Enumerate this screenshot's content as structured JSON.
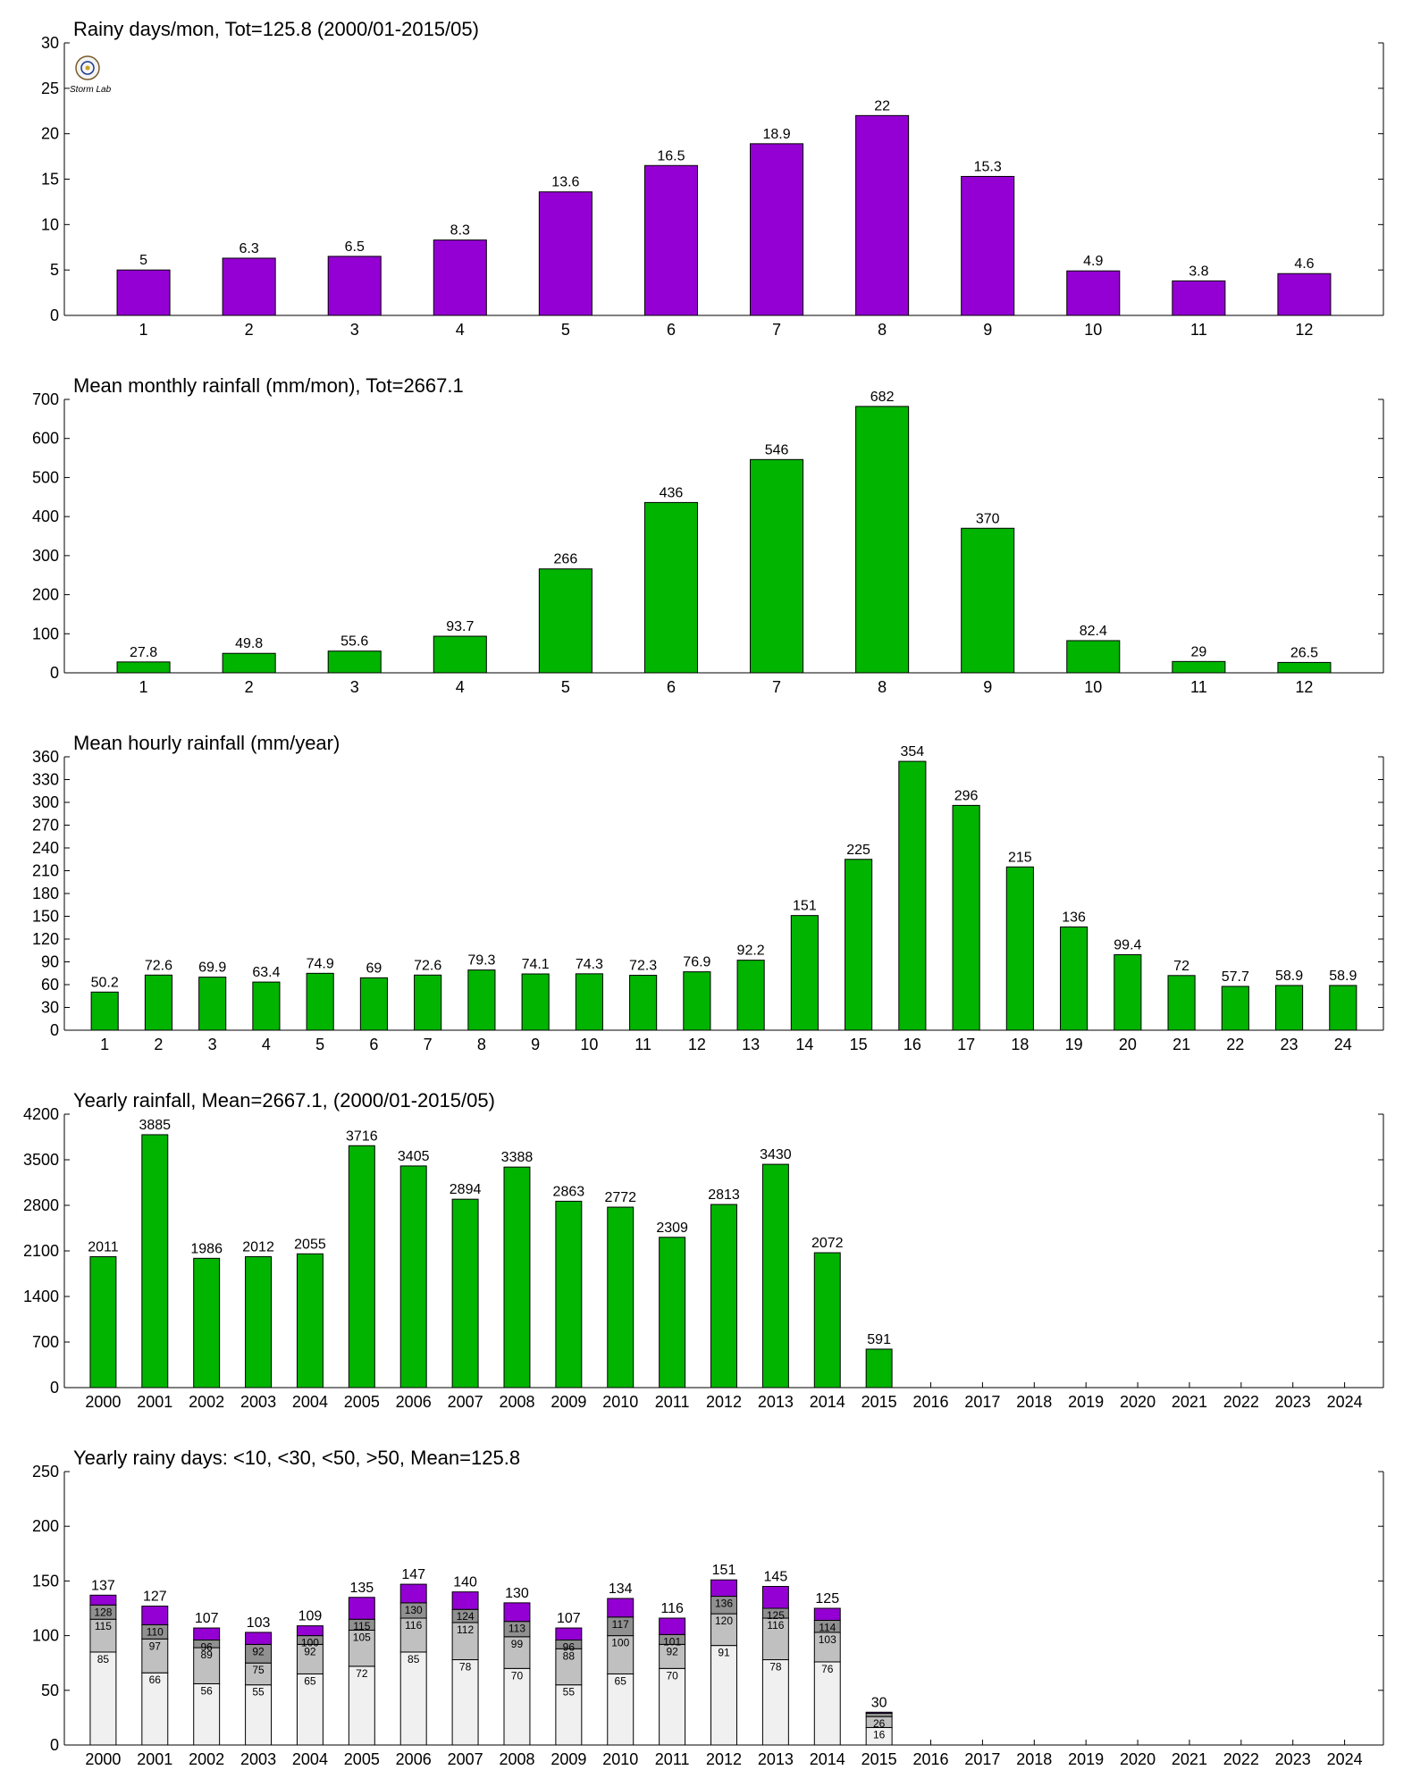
{
  "colors": {
    "purple": "#9400d3",
    "green": "#00b400",
    "seg_lt10": "#f0f0f0",
    "seg_10_30": "#c0c0c0",
    "seg_30_50": "#909090",
    "seg_gt50": "#9400d3"
  },
  "logo": {
    "text": "Storm Lab",
    "icon": "lab-seal-logo"
  },
  "chart_data": [
    {
      "type": "bar",
      "title": "Rainy days/mon, Tot=125.8 (2000/01-2015/05)",
      "categories": [
        "1",
        "2",
        "3",
        "4",
        "5",
        "6",
        "7",
        "8",
        "9",
        "10",
        "11",
        "12"
      ],
      "values": [
        5,
        6.3,
        6.5,
        8.3,
        13.6,
        16.5,
        18.9,
        22,
        15.3,
        4.9,
        3.8,
        4.6
      ],
      "labels": [
        "5",
        "6.3",
        "6.5",
        "8.3",
        "13.6",
        "16.5",
        "18.9",
        "22",
        "15.3",
        "4.9",
        "3.8",
        "4.6"
      ],
      "ylim": [
        0,
        30
      ],
      "yticks": [
        0,
        5,
        10,
        15,
        20,
        25,
        30
      ],
      "color": "#9400d3"
    },
    {
      "type": "bar",
      "title": "Mean monthly rainfall (mm/mon), Tot=2667.1",
      "categories": [
        "1",
        "2",
        "3",
        "4",
        "5",
        "6",
        "7",
        "8",
        "9",
        "10",
        "11",
        "12"
      ],
      "values": [
        27.8,
        49.8,
        55.6,
        93.7,
        266,
        436,
        546,
        682,
        370,
        82.4,
        29,
        26.5
      ],
      "labels": [
        "27.8",
        "49.8",
        "55.6",
        "93.7",
        "266",
        "436",
        "546",
        "682",
        "370",
        "82.4",
        "29",
        "26.5"
      ],
      "ylim": [
        0,
        700
      ],
      "yticks": [
        0,
        100,
        200,
        300,
        400,
        500,
        600,
        700
      ],
      "color": "#00b400"
    },
    {
      "type": "bar",
      "title": "Mean hourly rainfall (mm/year)",
      "categories": [
        "1",
        "2",
        "3",
        "4",
        "5",
        "6",
        "7",
        "8",
        "9",
        "10",
        "11",
        "12",
        "13",
        "14",
        "15",
        "16",
        "17",
        "18",
        "19",
        "20",
        "21",
        "22",
        "23",
        "24"
      ],
      "values": [
        50.2,
        72.6,
        69.9,
        63.4,
        74.9,
        69,
        72.6,
        79.3,
        74.1,
        74.3,
        72.3,
        76.9,
        92.2,
        151,
        225,
        354,
        296,
        215,
        136,
        99.4,
        72,
        57.7,
        58.9,
        58.9
      ],
      "labels": [
        "50.2",
        "72.6",
        "69.9",
        "63.4",
        "74.9",
        "69",
        "72.6",
        "79.3",
        "74.1",
        "74.3",
        "72.3",
        "76.9",
        "92.2",
        "151",
        "225",
        "354",
        "296",
        "215",
        "136",
        "99.4",
        "72",
        "57.7",
        "58.9",
        "58.9"
      ],
      "ylim": [
        0,
        360
      ],
      "yticks": [
        0,
        30,
        60,
        90,
        120,
        150,
        180,
        210,
        240,
        270,
        300,
        330,
        360
      ],
      "color": "#00b400"
    },
    {
      "type": "bar",
      "title": "Yearly rainfall, Mean=2667.1, (2000/01-2015/05)",
      "categories": [
        "2000",
        "2001",
        "2002",
        "2003",
        "2004",
        "2005",
        "2006",
        "2007",
        "2008",
        "2009",
        "2010",
        "2011",
        "2012",
        "2013",
        "2014",
        "2015",
        "2016",
        "2017",
        "2018",
        "2019",
        "2020",
        "2021",
        "2022",
        "2023",
        "2024"
      ],
      "values": [
        2011,
        3885,
        1986,
        2012,
        2055,
        3716,
        3405,
        2894,
        3388,
        2863,
        2772,
        2309,
        2813,
        3430,
        2072,
        591,
        null,
        null,
        null,
        null,
        null,
        null,
        null,
        null,
        null
      ],
      "labels": [
        "2011",
        "3885",
        "1986",
        "2012",
        "2055",
        "3716",
        "3405",
        "2894",
        "3388",
        "2863",
        "2772",
        "2309",
        "2813",
        "3430",
        "2072",
        "591",
        "",
        "",
        "",
        "",
        "",
        "",
        "",
        "",
        ""
      ],
      "ylim": [
        0,
        4200
      ],
      "yticks": [
        0,
        700,
        1400,
        2100,
        2800,
        3500,
        4200
      ],
      "color": "#00b400"
    },
    {
      "type": "bar",
      "stacked": true,
      "title": "Yearly rainy days: <10, <30, <50, >50, Mean=125.8",
      "categories": [
        "2000",
        "2001",
        "2002",
        "2003",
        "2004",
        "2005",
        "2006",
        "2007",
        "2008",
        "2009",
        "2010",
        "2011",
        "2012",
        "2013",
        "2014",
        "2015",
        "2016",
        "2017",
        "2018",
        "2019",
        "2020",
        "2021",
        "2022",
        "2023",
        "2024"
      ],
      "cumulative": [
        [
          85,
          115,
          128,
          137
        ],
        [
          66,
          97,
          110,
          127
        ],
        [
          56,
          89,
          96,
          107
        ],
        [
          55,
          75,
          92,
          103
        ],
        [
          65,
          92,
          100,
          109
        ],
        [
          72,
          105,
          115,
          135
        ],
        [
          85,
          116,
          130,
          147
        ],
        [
          78,
          112,
          124,
          140
        ],
        [
          70,
          99,
          113,
          130
        ],
        [
          55,
          88,
          96,
          107
        ],
        [
          65,
          100,
          117,
          134
        ],
        [
          70,
          92,
          101,
          116
        ],
        [
          91,
          120,
          136,
          151
        ],
        [
          78,
          116,
          125,
          145
        ],
        [
          76,
          103,
          114,
          125
        ],
        [
          16,
          26,
          29,
          30
        ],
        null,
        null,
        null,
        null,
        null,
        null,
        null,
        null,
        null
      ],
      "segment_labels": [
        [
          "85",
          "115",
          "128"
        ],
        [
          "66",
          "97",
          "110"
        ],
        [
          "56",
          "89",
          "96"
        ],
        [
          "55",
          "75",
          "92"
        ],
        [
          "65",
          "92",
          "100"
        ],
        [
          "72",
          "105",
          "115"
        ],
        [
          "85",
          "116",
          "130"
        ],
        [
          "78",
          "112",
          "124"
        ],
        [
          "70",
          "99",
          "113"
        ],
        [
          "55",
          "88",
          "96"
        ],
        [
          "65",
          "100",
          "117"
        ],
        [
          "70",
          "92",
          "101"
        ],
        [
          "91",
          "120",
          "136"
        ],
        [
          "78",
          "116",
          "125"
        ],
        [
          "76",
          "103",
          "114"
        ],
        [
          "16",
          "26",
          ""
        ],
        null,
        null,
        null,
        null,
        null,
        null,
        null,
        null,
        null
      ],
      "total_labels": [
        "137",
        "127",
        "107",
        "103",
        "109",
        "135",
        "147",
        "140",
        "130",
        "107",
        "134",
        "116",
        "151",
        "145",
        "125",
        "30",
        "",
        "",
        "",
        "",
        "",
        "",
        "",
        "",
        ""
      ],
      "ylim": [
        0,
        250
      ],
      "yticks": [
        0,
        50,
        100,
        150,
        200,
        250
      ]
    }
  ]
}
